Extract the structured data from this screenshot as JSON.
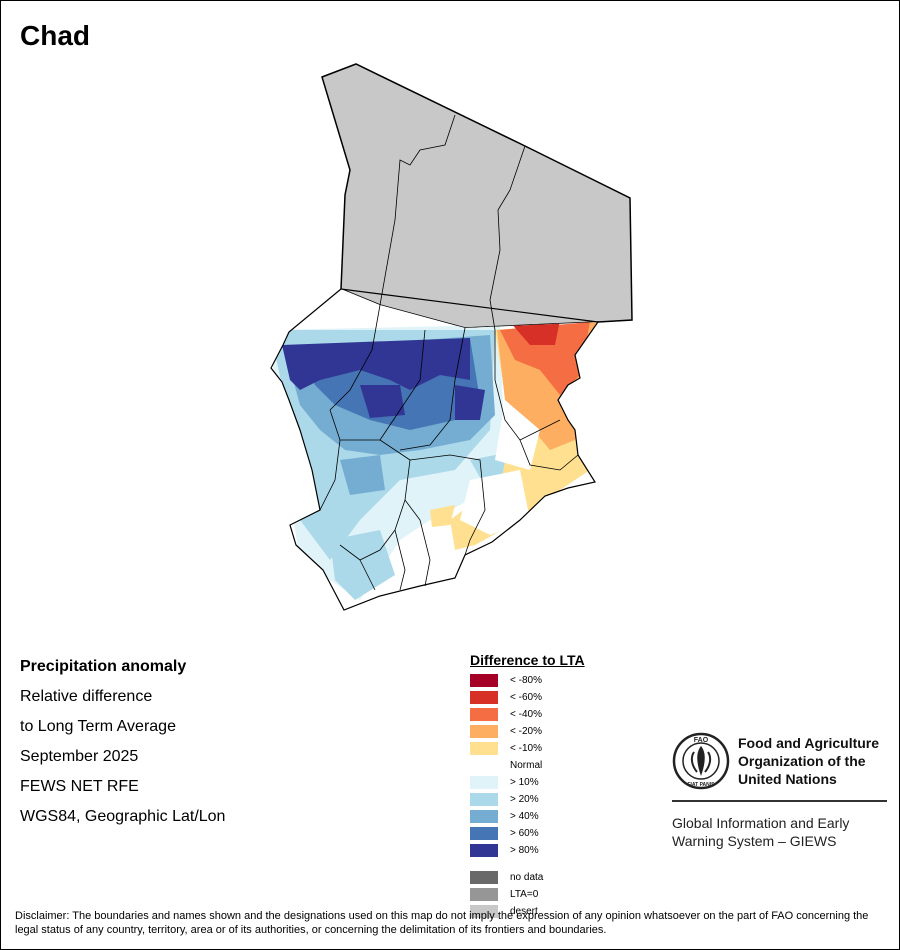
{
  "title": "Chad",
  "info": {
    "line1": "Precipitation anomaly",
    "line2": "Relative difference",
    "line3": "to Long Term Average",
    "line4": "September 2025",
    "line5": "FEWS NET RFE",
    "line6": "WGS84, Geographic Lat/Lon"
  },
  "legend": {
    "title": "Difference to LTA",
    "items": [
      {
        "label": "< -80%",
        "color": "#a50026"
      },
      {
        "label": "< -60%",
        "color": "#d73027"
      },
      {
        "label": "< -40%",
        "color": "#f46d43"
      },
      {
        "label": "< -20%",
        "color": "#fdae61"
      },
      {
        "label": "< -10%",
        "color": "#fee090"
      },
      {
        "label": "Normal",
        "color": "#ffffff"
      },
      {
        "label": "> 10%",
        "color": "#e0f3f8"
      },
      {
        "label": "> 20%",
        "color": "#abd9e9"
      },
      {
        "label": "> 40%",
        "color": "#74add1"
      },
      {
        "label": "> 60%",
        "color": "#4575b4"
      },
      {
        "label": "> 80%",
        "color": "#313695"
      }
    ],
    "extra": [
      {
        "label": "no data",
        "color": "#696969"
      },
      {
        "label": "LTA=0",
        "color": "#969696"
      },
      {
        "label": "desert",
        "color": "#c8c8c8"
      }
    ]
  },
  "fao": {
    "logo_text": "FAO",
    "logo_motto": "FIAT PANIS",
    "name_line1": "Food and Agriculture",
    "name_line2": "Organization of the",
    "name_line3": "United Nations",
    "giews_line1": "Global Information and Early",
    "giews_line2": "Warning System – GIEWS"
  },
  "disclaimer": "Disclaimer: The boundaries and names shown and the designations used on this map do not imply the expression of any opinion whatsoever on the part of FAO concerning the legal status of any country, territory, area or of its authorities, or concerning the delimitation of its frontiers and boundaries."
}
